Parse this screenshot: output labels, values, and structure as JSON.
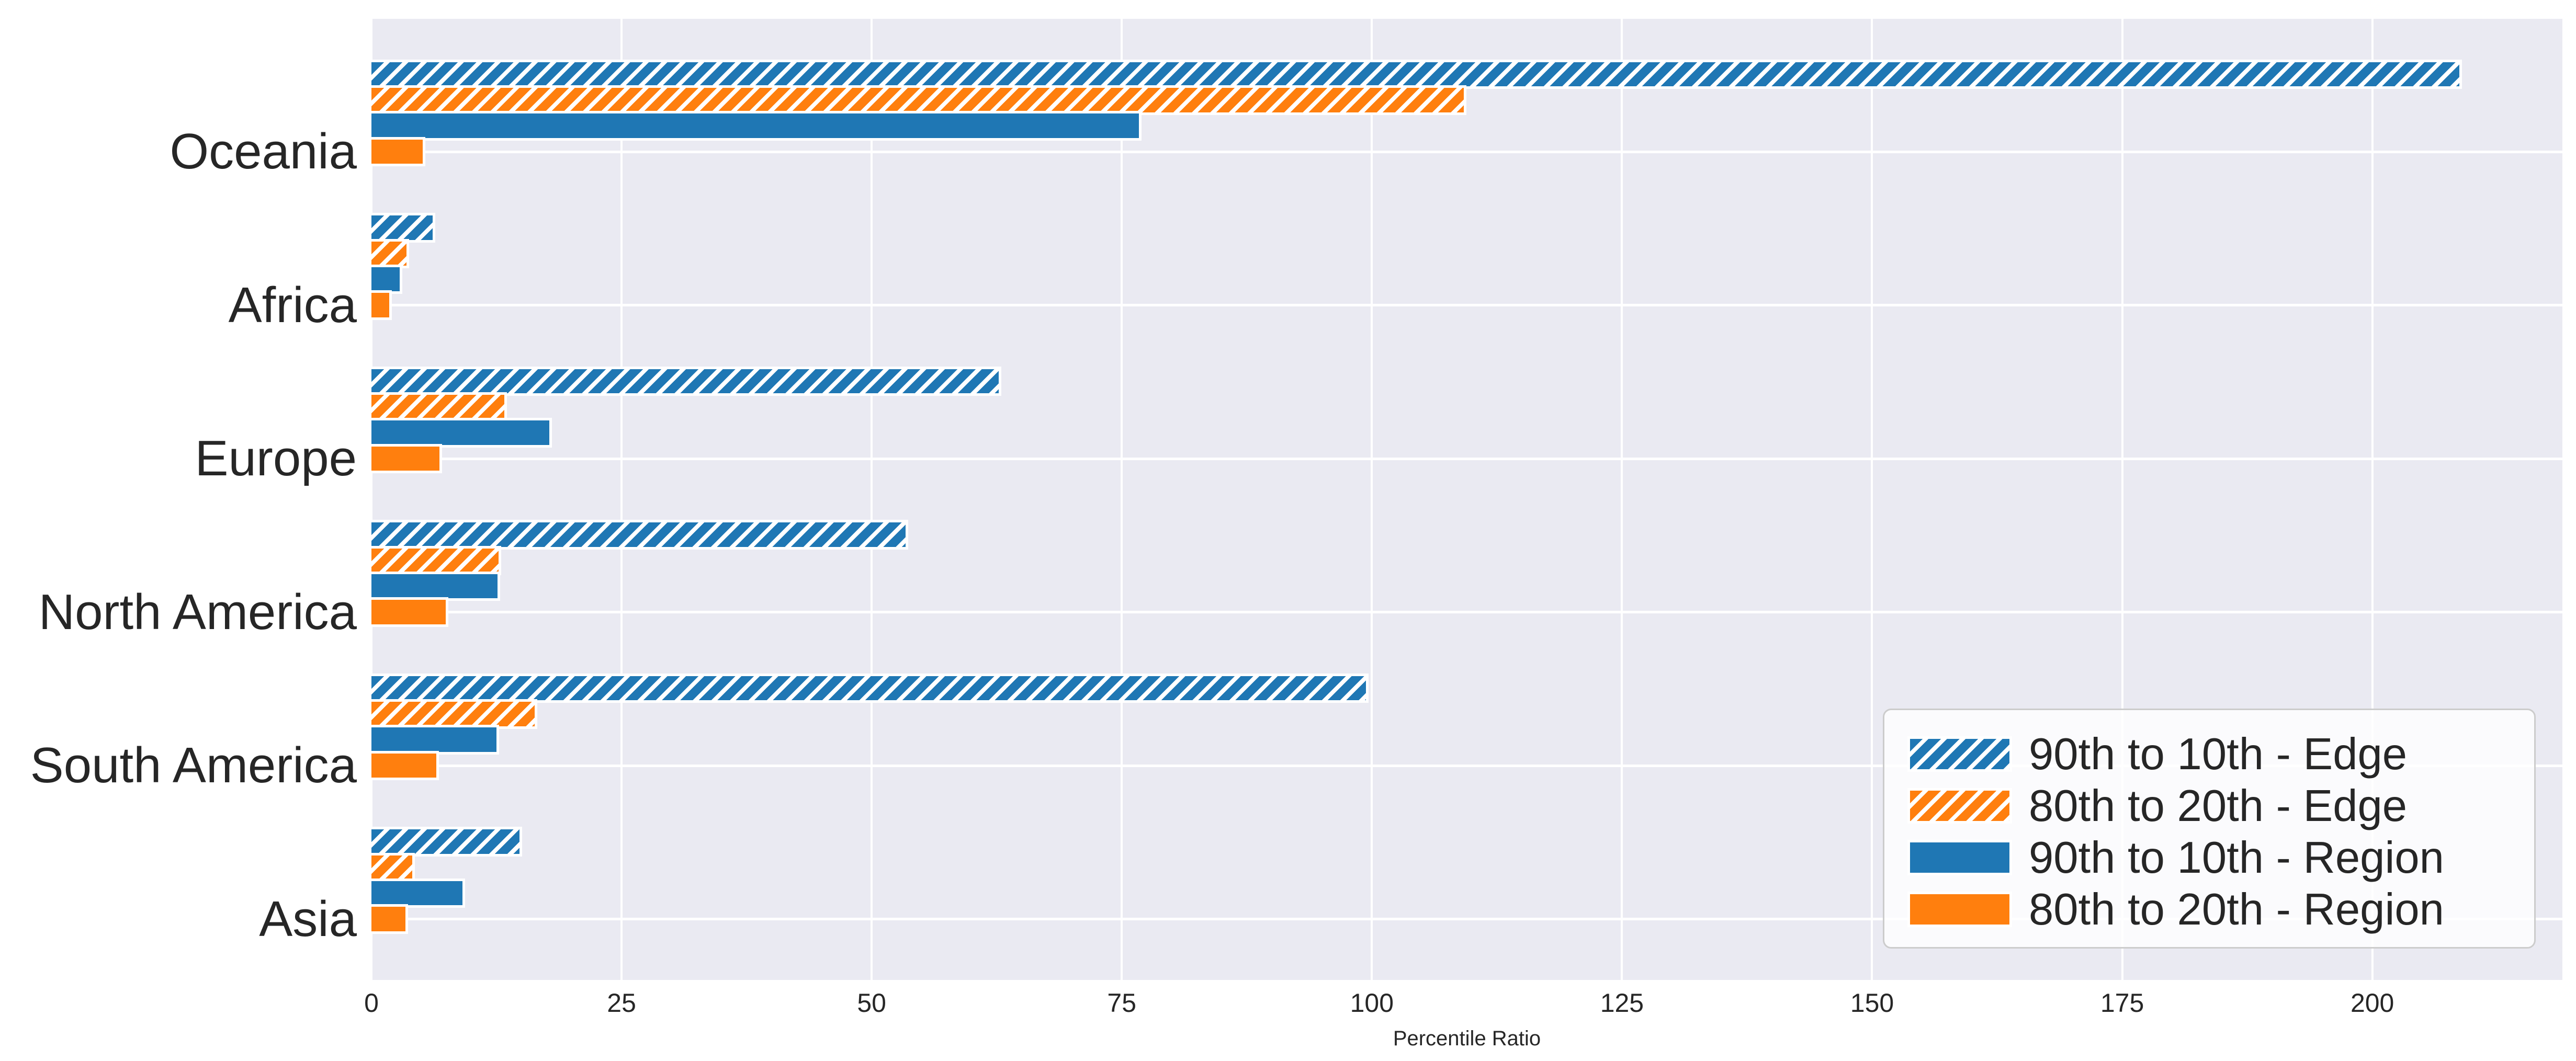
{
  "chart_data": {
    "type": "bar",
    "orientation": "horizontal",
    "title": "",
    "xlabel": "Percentile Ratio",
    "ylabel": "",
    "categories": [
      "Oceania",
      "Africa",
      "Europe",
      "North America",
      "South America",
      "Asia"
    ],
    "series": [
      {
        "name": "90th to 10th - Edge",
        "style": "hatched",
        "color": "#1f77b4",
        "values": [
          208.7,
          6.1,
          62.7,
          53.4,
          99.4,
          14.8
        ]
      },
      {
        "name": "80th to 20th - Edge",
        "style": "hatched",
        "color": "#ff7f0e",
        "values": [
          109.2,
          3.5,
          13.3,
          12.7,
          16.3,
          4.1
        ]
      },
      {
        "name": "90th to 10th - Region",
        "style": "solid",
        "color": "#1f77b4",
        "values": [
          76.7,
          2.8,
          17.8,
          12.6,
          12.5,
          9.1
        ]
      },
      {
        "name": "80th to 20th - Region",
        "style": "solid",
        "color": "#ff7f0e",
        "values": [
          5.1,
          1.8,
          6.8,
          7.4,
          6.5,
          3.4
        ]
      }
    ],
    "x_ticks": [
      0,
      25,
      50,
      75,
      100,
      125,
      150,
      175,
      200
    ],
    "xlim": [
      0,
      219
    ],
    "grid": true,
    "legend_position": "lower right",
    "legend_entries": [
      "90th to 10th - Edge",
      "80th to 20th - Edge",
      "90th to 10th - Region",
      "80th to 20th - Region"
    ],
    "colors": {
      "background": "#eaeaf2",
      "grid": "#ffffff",
      "text": "#262626",
      "blue": "#1f77b4",
      "orange": "#ff7f0e"
    }
  }
}
